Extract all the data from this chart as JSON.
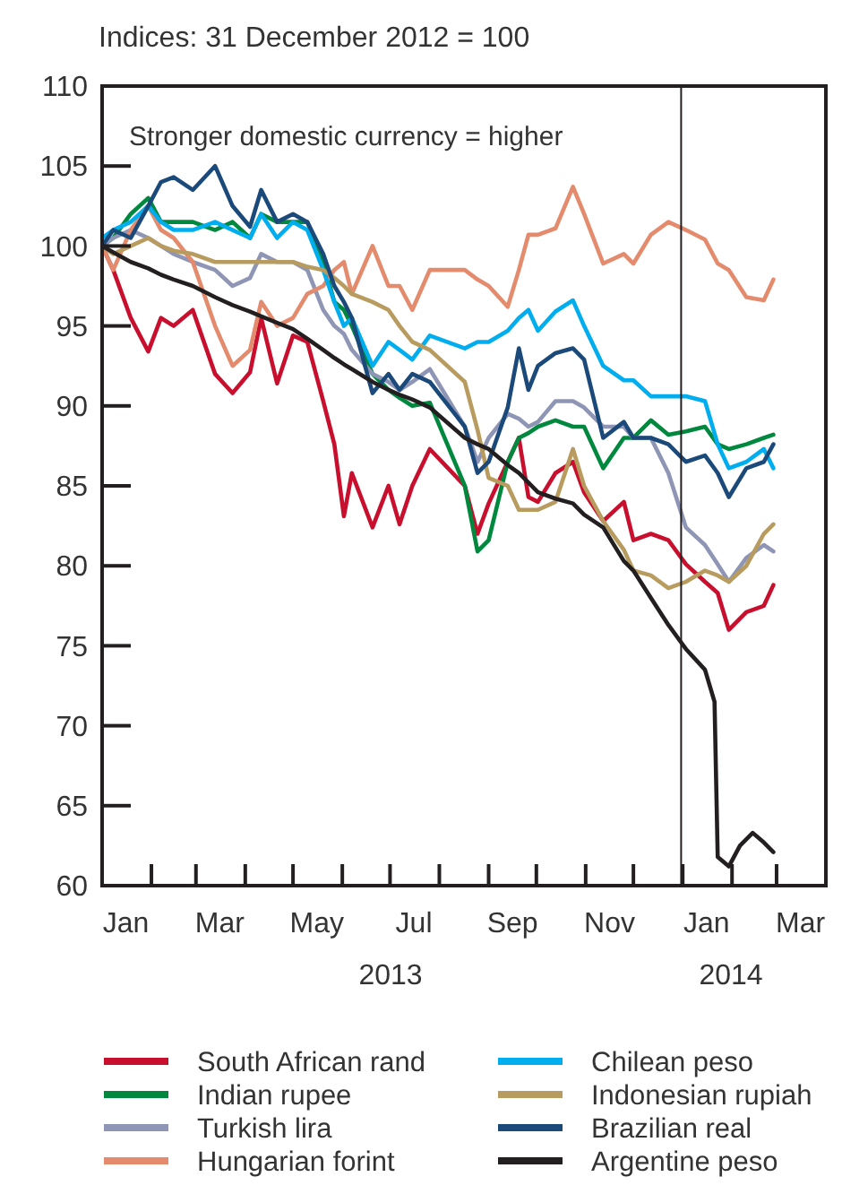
{
  "chart_data": {
    "type": "line",
    "ylabel": "Indices: 31 December 2012 = 100",
    "annotations": [
      "Stronger domestic currency = higher",
      "2013",
      "2014"
    ],
    "x": [
      "2013-01-01",
      "2013-01-08",
      "2013-01-19",
      "2013-01-30",
      "2013-02-07",
      "2013-02-15",
      "2013-02-27",
      "2013-03-13",
      "2013-03-24",
      "2013-04-04",
      "2013-04-11",
      "2013-04-21",
      "2013-05-01",
      "2013-05-10",
      "2013-05-20",
      "2013-05-27",
      "2013-06-02",
      "2013-06-07",
      "2013-06-20",
      "2013-06-30",
      "2013-07-07",
      "2013-07-15",
      "2013-07-26",
      "2013-08-17",
      "2013-08-25",
      "2013-09-01",
      "2013-09-13",
      "2013-09-20",
      "2013-09-26",
      "2013-10-02",
      "2013-10-13",
      "2013-10-24",
      "2013-10-31",
      "2013-11-12",
      "2013-11-25",
      "2013-12-01",
      "2013-12-12",
      "2013-12-23",
      "2014-01-03",
      "2014-01-15",
      "2014-01-23",
      "2014-01-30",
      "2014-02-10",
      "2014-02-21",
      "2014-02-27"
    ],
    "series": [
      {
        "name": "South African rand",
        "color": "#c8102e",
        "values": [
          100,
          98.5,
          95.5,
          93.4,
          95.5,
          95,
          96,
          92,
          90.8,
          92.1,
          95.5,
          91.4,
          94.4,
          94,
          90.3,
          87.6,
          83.1,
          85.8,
          82.4,
          85,
          82.6,
          85,
          87.3,
          85,
          82,
          83.9,
          86.5,
          88,
          84.3,
          84,
          85.8,
          86.5,
          84.6,
          82.8,
          84,
          81.6,
          82,
          81.6,
          80.1,
          79,
          78.3,
          76,
          77.1,
          77.5,
          78.8
        ]
      },
      {
        "name": "Indian rupee",
        "color": "#00893e",
        "values": [
          100,
          100.5,
          102,
          103,
          101.5,
          101.5,
          101.5,
          101,
          101.5,
          100.5,
          102,
          101.5,
          101.5,
          101.5,
          99,
          96.5,
          96,
          95,
          92,
          91,
          90.5,
          90,
          90.2,
          85,
          80.9,
          81.6,
          86.5,
          88,
          88.3,
          88.7,
          89.1,
          88.7,
          88.7,
          86.1,
          88,
          88,
          89.1,
          88.2,
          88.4,
          88.7,
          87.6,
          87.3,
          87.6,
          88,
          88.2
        ]
      },
      {
        "name": "Turkish lira",
        "color": "#8e95b5",
        "values": [
          100,
          100.5,
          101,
          100.5,
          100,
          99.5,
          99,
          98.5,
          97.5,
          98,
          99.5,
          99,
          99,
          98.5,
          96,
          95,
          94.5,
          93.5,
          92,
          91.5,
          91,
          91.5,
          92.3,
          88.7,
          86.5,
          88,
          89.5,
          89.2,
          88.7,
          89,
          90.3,
          90.3,
          89.9,
          88.7,
          88.7,
          88,
          88,
          85.8,
          82.4,
          81.3,
          80.1,
          79,
          80.5,
          81.3,
          80.9
        ]
      },
      {
        "name": "Hungarian forint",
        "color": "#e58b6d",
        "values": [
          100,
          98.5,
          101,
          102.5,
          101,
          100.5,
          99,
          95,
          92.5,
          93.5,
          96.5,
          95,
          95.5,
          97,
          97.5,
          98.5,
          99,
          97,
          100,
          97.5,
          97.5,
          96,
          98.5,
          98.5,
          97.9,
          97.5,
          96.2,
          98.5,
          100.7,
          100.7,
          101.1,
          103.7,
          102,
          98.9,
          99.5,
          98.9,
          100.7,
          101.5,
          101,
          100.4,
          98.9,
          98.5,
          96.8,
          96.6,
          97.9
        ]
      },
      {
        "name": "Chilean peso",
        "color": "#00aeef",
        "values": [
          100.5,
          101,
          101.5,
          102.5,
          101.5,
          101,
          101,
          101.5,
          101,
          100.5,
          102,
          100.5,
          101.5,
          101,
          98.5,
          96.5,
          95,
          95.5,
          92.5,
          94,
          93.5,
          92.9,
          94.4,
          93.6,
          94,
          94,
          94.7,
          95.5,
          96,
          94.7,
          95.9,
          96.6,
          95,
          92.5,
          91.6,
          91.6,
          90.6,
          90.6,
          90.6,
          90.3,
          87.6,
          86.1,
          86.5,
          87.3,
          86.1
        ]
      },
      {
        "name": "Indonesian rupiah",
        "color": "#b89b5e",
        "values": [
          100,
          99.5,
          100,
          100.5,
          100,
          99.7,
          99.5,
          99,
          99,
          99,
          99,
          99,
          99,
          98.7,
          98.5,
          98,
          97.5,
          97,
          96.5,
          96,
          95,
          94,
          93.5,
          91.5,
          88.5,
          85.5,
          85,
          83.5,
          83.5,
          83.5,
          84,
          87.3,
          85,
          82.8,
          81,
          79.7,
          79.4,
          78.6,
          79,
          79.7,
          79.4,
          79,
          80,
          82,
          82.6
        ]
      },
      {
        "name": "Brazilian real",
        "color": "#1b4a7a",
        "values": [
          100,
          101,
          100.5,
          102.5,
          104,
          104.3,
          103.5,
          105,
          102.5,
          101.2,
          103.5,
          101.5,
          102,
          101.5,
          99.5,
          97.5,
          96.5,
          95.5,
          90.8,
          92,
          91,
          92,
          91.5,
          88.7,
          85.8,
          86.5,
          89.9,
          93.6,
          91,
          92.5,
          93.3,
          93.6,
          92.9,
          88,
          89,
          88,
          88,
          87.6,
          86.5,
          86.9,
          85.8,
          84.3,
          86.1,
          86.5,
          87.6
        ]
      },
      {
        "name": "Argentine peso",
        "color": "#231f20",
        "x": [
          "2013-01-01",
          "2013-01-08",
          "2013-01-19",
          "2013-01-30",
          "2013-02-07",
          "2013-02-15",
          "2013-02-27",
          "2013-03-13",
          "2013-03-24",
          "2013-04-04",
          "2013-04-11",
          "2013-04-21",
          "2013-05-01",
          "2013-05-10",
          "2013-05-20",
          "2013-05-27",
          "2013-06-02",
          "2013-06-07",
          "2013-06-20",
          "2013-06-30",
          "2013-07-07",
          "2013-07-15",
          "2013-07-26",
          "2013-08-17",
          "2013-08-25",
          "2013-09-01",
          "2013-09-13",
          "2013-09-20",
          "2013-09-26",
          "2013-10-02",
          "2013-10-13",
          "2013-10-24",
          "2013-10-31",
          "2013-11-12",
          "2013-11-25",
          "2013-12-01",
          "2013-12-12",
          "2013-12-23",
          "2014-01-03",
          "2014-01-15",
          "2014-01-21",
          "2014-01-23",
          "2014-01-30",
          "2014-02-06",
          "2014-02-14",
          "2014-02-21",
          "2014-02-27"
        ],
        "values": [
          100,
          99.6,
          99,
          98.6,
          98.2,
          97.9,
          97.5,
          96.8,
          96.3,
          95.9,
          95.6,
          95.2,
          94.8,
          94.2,
          93.5,
          93,
          92.6,
          92.3,
          91.5,
          91,
          90.7,
          90.4,
          89.9,
          88,
          87.6,
          87.3,
          86.3,
          85.8,
          85.2,
          84.6,
          84.2,
          83.9,
          83.2,
          82.4,
          80.3,
          79.7,
          78,
          76.3,
          74.8,
          73.5,
          71.5,
          61.8,
          61.2,
          62.5,
          63.3,
          62.7,
          62.1
        ]
      }
    ],
    "xlim": [
      "2013-01-01",
      "2014-04-01"
    ],
    "xticks": [
      {
        "value": "2013-01-01",
        "label": null
      },
      {
        "value": "2013-02-01",
        "label": null
      },
      {
        "value": "2013-03-01",
        "label": null
      },
      {
        "value": "2013-04-01",
        "label": null
      },
      {
        "value": "2013-05-01",
        "label": null
      },
      {
        "value": "2013-06-01",
        "label": null
      },
      {
        "value": "2013-07-01",
        "label": null
      },
      {
        "value": "2013-08-01",
        "label": null
      },
      {
        "value": "2013-09-01",
        "label": null
      },
      {
        "value": "2013-10-01",
        "label": null
      },
      {
        "value": "2013-11-01",
        "label": null
      },
      {
        "value": "2013-12-01",
        "label": null
      },
      {
        "value": "2014-01-01",
        "label": null
      },
      {
        "value": "2014-02-01",
        "label": null
      },
      {
        "value": "2014-03-01",
        "label": null
      },
      {
        "value": "2013-01-16",
        "label": "Jan"
      },
      {
        "value": "2013-03-16",
        "label": "Mar"
      },
      {
        "value": "2013-05-16",
        "label": "May"
      },
      {
        "value": "2013-07-16",
        "label": "Jul"
      },
      {
        "value": "2013-09-16",
        "label": "Sep"
      },
      {
        "value": "2013-11-16",
        "label": "Nov"
      },
      {
        "value": "2014-01-16",
        "label": "Jan"
      },
      {
        "value": "2014-03-16",
        "label": "Mar"
      }
    ],
    "ylim": [
      60,
      110
    ],
    "yticks": [
      60,
      65,
      70,
      75,
      80,
      85,
      90,
      95,
      100,
      105,
      110
    ],
    "ref_lines": [
      {
        "axis": "x",
        "value": "2013-12-31",
        "color": "#231f20"
      }
    ],
    "grid": false,
    "legend": "bottom",
    "line_style": "solid",
    "marker": "none"
  }
}
